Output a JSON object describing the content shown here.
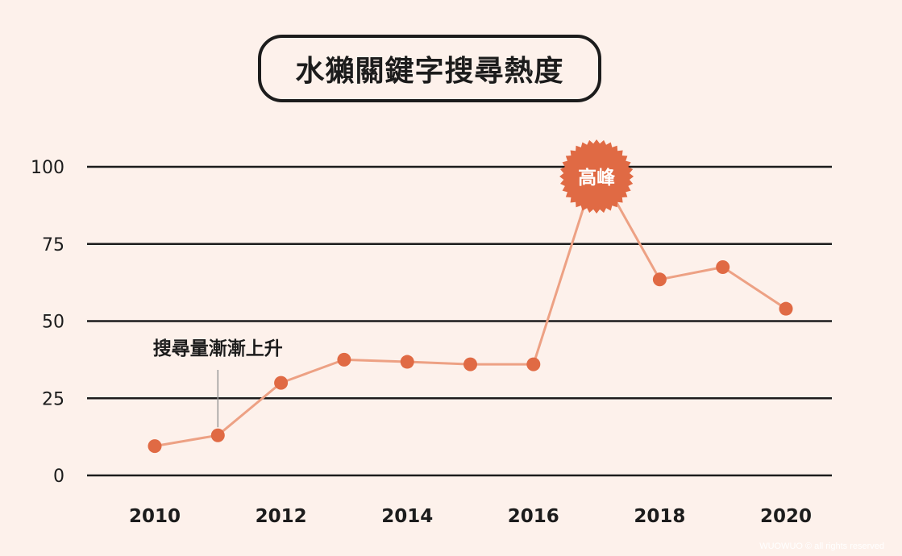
{
  "chart_data": {
    "type": "line",
    "title": "水獺關鍵字搜尋熱度",
    "x": [
      2010,
      2011,
      2012,
      2013,
      2014,
      2015,
      2016,
      2017,
      2018,
      2019,
      2020
    ],
    "series": [
      {
        "values": [
          9.5,
          13,
          30,
          37.5,
          36.8,
          36,
          36,
          100,
          63.5,
          67.5,
          54
        ]
      }
    ],
    "x_tick_labels": [
      "2010",
      "2012",
      "2014",
      "2016",
      "2018",
      "2020"
    ],
    "y_tick_labels": [
      "0",
      "25",
      "50",
      "75",
      "100"
    ],
    "ylim": [
      0,
      100
    ],
    "xlim": [
      2009.8,
      2020.4
    ],
    "grid": "horizontal",
    "annotations": {
      "rise": {
        "text": "搜尋量漸漸上升",
        "x": 2011
      },
      "peak": {
        "text": "高峰",
        "x": 2017
      }
    }
  },
  "colors": {
    "background": "#fdf1eb",
    "line": "#eda184",
    "marker": "#e06a44",
    "grid": "#1c1c1c",
    "text": "#1c1c1c",
    "badge": "#e06a44",
    "badge_text": "#ffffff"
  },
  "watermark": "WUOWUO © all rights reserved"
}
